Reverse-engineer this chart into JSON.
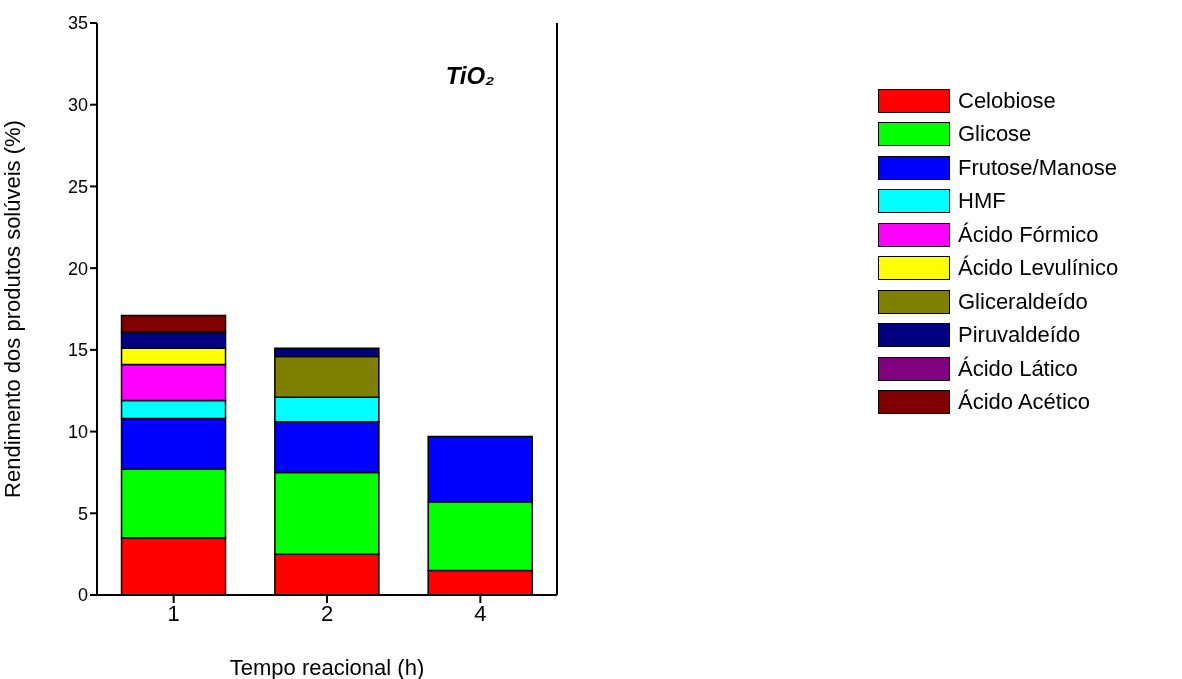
{
  "chart_data": {
    "type": "bar",
    "stacked": true,
    "title": "TiO₂",
    "xlabel": "Tempo reacional (h)",
    "ylabel": "Rendimento dos produtos solúveis (%)",
    "categories": [
      "1",
      "2",
      "4"
    ],
    "ylim": [
      0,
      35
    ],
    "yticks": [
      0,
      5,
      10,
      15,
      20,
      25,
      30,
      35
    ],
    "legend": "right",
    "grid": false,
    "series": [
      {
        "name": "Celobiose",
        "color": "#ff0000",
        "values": [
          3.5,
          2.5,
          1.5
        ]
      },
      {
        "name": "Glicose",
        "color": "#00ff00",
        "values": [
          4.2,
          5.0,
          4.2
        ]
      },
      {
        "name": "Frutose/Manose",
        "color": "#0000ff",
        "values": [
          3.1,
          3.1,
          4.0
        ]
      },
      {
        "name": "HMF",
        "color": "#00ffff",
        "values": [
          1.1,
          1.5,
          null
        ]
      },
      {
        "name": "Ácido Fórmico",
        "color": "#ff00ff",
        "values": [
          2.2,
          null,
          null
        ]
      },
      {
        "name": "Ácido Levulínico",
        "color": "#ffff00",
        "values": [
          1.0,
          null,
          null
        ]
      },
      {
        "name": "Gliceraldeído",
        "color": "#808000",
        "values": [
          null,
          2.5,
          null
        ]
      },
      {
        "name": "Piruvaldeído",
        "color": "#000080",
        "values": [
          1.0,
          0.5,
          null
        ]
      },
      {
        "name": "Ácido Lático",
        "color": "#800080",
        "values": [
          null,
          null,
          null
        ]
      },
      {
        "name": "Ácido Acético",
        "color": "#800000",
        "values": [
          1.0,
          null,
          null
        ]
      }
    ]
  }
}
